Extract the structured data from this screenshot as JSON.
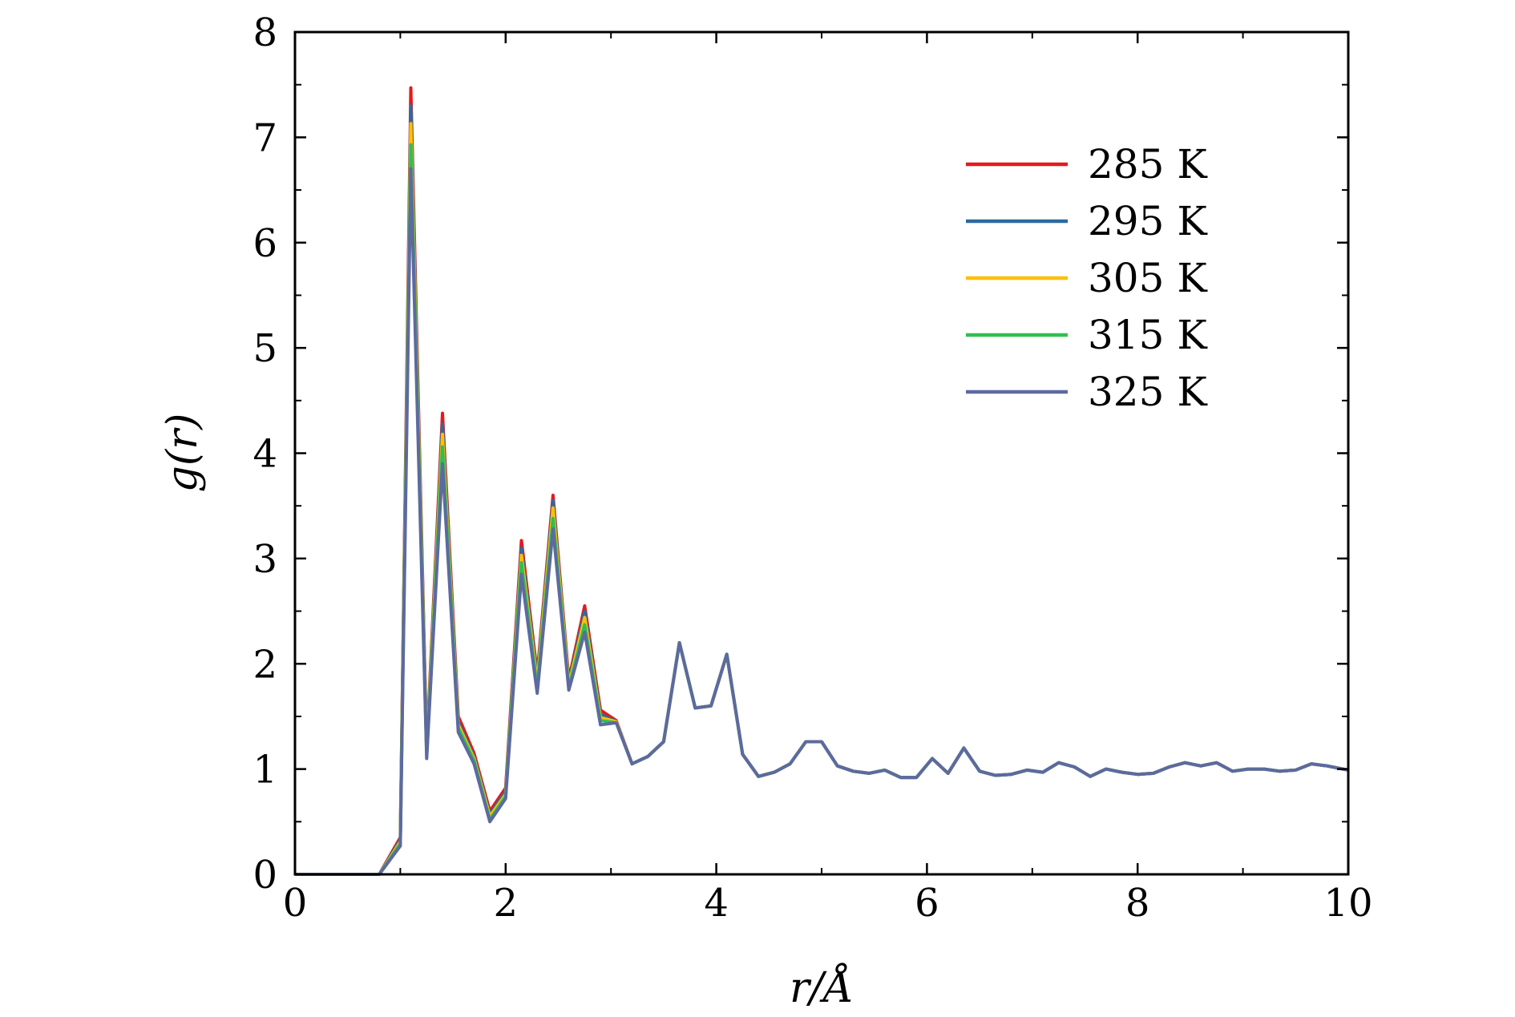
{
  "chart_data": {
    "type": "line",
    "title": "",
    "xlabel": "r/Å",
    "ylabel": "g(r)",
    "xlim": [
      0,
      10
    ],
    "ylim": [
      0,
      8
    ],
    "xticks": [
      "0",
      "2",
      "4",
      "6",
      "8",
      "10"
    ],
    "yticks": [
      "0",
      "1",
      "2",
      "3",
      "4",
      "5",
      "6",
      "7",
      "8"
    ],
    "grid": false,
    "legend_position": "top-right",
    "x": [
      0,
      0.8,
      1.0,
      1.1,
      1.25,
      1.4,
      1.55,
      1.7,
      1.85,
      2.0,
      2.15,
      2.3,
      2.45,
      2.6,
      2.75,
      2.9,
      3.05,
      3.2,
      3.35,
      3.5,
      3.65,
      3.8,
      3.95,
      4.1,
      4.25,
      4.4,
      4.55,
      4.7,
      4.85,
      5.0,
      5.15,
      5.3,
      5.45,
      5.6,
      5.75,
      5.9,
      6.05,
      6.2,
      6.35,
      6.5,
      6.65,
      6.8,
      6.95,
      7.1,
      7.25,
      7.4,
      7.55,
      7.7,
      7.85,
      8.0,
      8.15,
      8.3,
      8.45,
      8.6,
      8.75,
      8.9,
      9.05,
      9.2,
      9.35,
      9.5,
      9.65,
      9.8,
      10.0
    ],
    "series": [
      {
        "name": "285 K",
        "color": "#e41a1c",
        "values": [
          0,
          0,
          0.35,
          7.47,
          1.2,
          4.38,
          1.5,
          1.15,
          0.6,
          0.82,
          3.17,
          1.9,
          3.6,
          1.85,
          2.55,
          1.56,
          1.46,
          1.05,
          1.12,
          1.26,
          2.2,
          1.58,
          1.6,
          2.09,
          1.14,
          0.93,
          0.97,
          1.05,
          1.26,
          1.26,
          1.03,
          0.98,
          0.96,
          0.99,
          0.92,
          0.92,
          1.1,
          0.96,
          1.2,
          0.98,
          0.94,
          0.95,
          0.99,
          0.97,
          1.06,
          1.02,
          0.93,
          1.0,
          0.97,
          0.95,
          0.96,
          1.02,
          1.06,
          1.03,
          1.06,
          0.98,
          1.0,
          1.0,
          0.98,
          0.99,
          1.05,
          1.03,
          0.99
        ]
      },
      {
        "name": "295 K",
        "color": "#2f6a9f",
        "values": [
          0,
          0,
          0.33,
          7.3,
          1.17,
          4.28,
          1.45,
          1.12,
          0.57,
          0.79,
          3.1,
          1.86,
          3.55,
          1.82,
          2.5,
          1.52,
          1.45,
          1.05,
          1.12,
          1.26,
          2.2,
          1.58,
          1.6,
          2.09,
          1.14,
          0.93,
          0.97,
          1.05,
          1.26,
          1.26,
          1.03,
          0.98,
          0.96,
          0.99,
          0.92,
          0.92,
          1.1,
          0.96,
          1.2,
          0.98,
          0.94,
          0.95,
          0.99,
          0.97,
          1.06,
          1.02,
          0.93,
          1.0,
          0.97,
          0.95,
          0.96,
          1.02,
          1.06,
          1.03,
          1.06,
          0.98,
          1.0,
          1.0,
          0.98,
          0.99,
          1.05,
          1.03,
          0.99
        ]
      },
      {
        "name": "305 K",
        "color": "#ffc000",
        "values": [
          0,
          0,
          0.31,
          7.13,
          1.15,
          4.18,
          1.42,
          1.1,
          0.55,
          0.76,
          3.03,
          1.82,
          3.48,
          1.8,
          2.44,
          1.49,
          1.45,
          1.05,
          1.12,
          1.26,
          2.2,
          1.58,
          1.6,
          2.09,
          1.14,
          0.93,
          0.97,
          1.05,
          1.26,
          1.26,
          1.03,
          0.98,
          0.96,
          0.99,
          0.92,
          0.92,
          1.1,
          0.96,
          1.2,
          0.98,
          0.94,
          0.95,
          0.99,
          0.97,
          1.06,
          1.02,
          0.93,
          1.0,
          0.97,
          0.95,
          0.96,
          1.02,
          1.06,
          1.03,
          1.06,
          0.98,
          1.0,
          1.0,
          0.98,
          0.99,
          1.05,
          1.03,
          0.99
        ]
      },
      {
        "name": "315 K",
        "color": "#2fbf50",
        "values": [
          0,
          0,
          0.29,
          6.93,
          1.12,
          4.06,
          1.39,
          1.08,
          0.52,
          0.74,
          2.96,
          1.77,
          3.38,
          1.77,
          2.37,
          1.46,
          1.44,
          1.05,
          1.12,
          1.26,
          2.2,
          1.58,
          1.6,
          2.09,
          1.14,
          0.93,
          0.97,
          1.05,
          1.26,
          1.26,
          1.03,
          0.98,
          0.96,
          0.99,
          0.92,
          0.92,
          1.1,
          0.96,
          1.2,
          0.98,
          0.94,
          0.95,
          0.99,
          0.97,
          1.06,
          1.02,
          0.93,
          1.0,
          0.97,
          0.95,
          0.96,
          1.02,
          1.06,
          1.03,
          1.06,
          0.98,
          1.0,
          1.0,
          0.98,
          0.99,
          1.05,
          1.03,
          0.99
        ]
      },
      {
        "name": "325 K",
        "color": "#5c6aa0",
        "values": [
          0,
          0,
          0.27,
          6.7,
          1.1,
          3.9,
          1.35,
          1.05,
          0.5,
          0.72,
          2.85,
          1.72,
          3.28,
          1.75,
          2.3,
          1.42,
          1.44,
          1.05,
          1.12,
          1.26,
          2.2,
          1.58,
          1.6,
          2.09,
          1.14,
          0.93,
          0.97,
          1.05,
          1.26,
          1.26,
          1.03,
          0.98,
          0.96,
          0.99,
          0.92,
          0.92,
          1.1,
          0.96,
          1.2,
          0.98,
          0.94,
          0.95,
          0.99,
          0.97,
          1.06,
          1.02,
          0.93,
          1.0,
          0.97,
          0.95,
          0.96,
          1.02,
          1.06,
          1.03,
          1.06,
          0.98,
          1.0,
          1.0,
          0.98,
          0.99,
          1.05,
          1.03,
          0.99
        ]
      }
    ]
  }
}
